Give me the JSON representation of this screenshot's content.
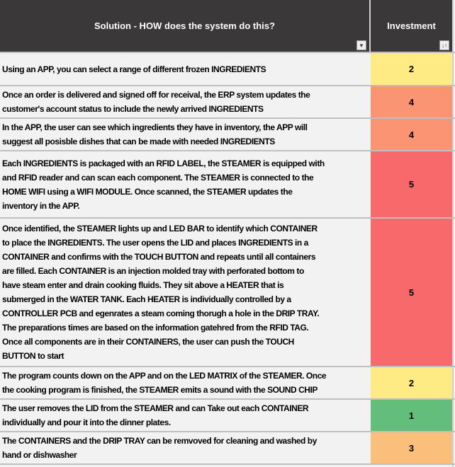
{
  "header": {
    "solution": "Solution - HOW does the system do this?",
    "investment": "Investment"
  },
  "colors": {
    "header_bg": "#3a3838",
    "1": "#63be7b",
    "2": "#ffeb84",
    "3": "#fbbf7c",
    "4": "#fa9473",
    "5": "#f8696b"
  },
  "rows": [
    {
      "lines": [
        "Using an APP, you can select a range of different frozen INGREDIENTS"
      ],
      "investment": "2"
    },
    {
      "lines": [
        "Once an order is delivered and signed off for receival, the ERP system updates the",
        "customer's account status to include the newly arrived INGREDIENTS"
      ],
      "investment": "4"
    },
    {
      "lines": [
        "In the APP, the user can see which ingredients they have in inventory, the APP will",
        "suggest all posisble dishes that can be made with needed INGREDIENTS"
      ],
      "investment": "4"
    },
    {
      "lines": [
        "Each INGREDIENTS is packaged with an RFID LABEL, the STEAMER is equipped with",
        "and RFID reader and can scan each component. The STEAMER is connected to the",
        "HOME WIFI using a WIFI MODULE. Once scanned, the STEAMER updates the",
        "inventory in the APP."
      ],
      "investment": "5"
    },
    {
      "lines": [
        "Once identified, the STEAMER lights up and LED BAR to identify which CONTAINER",
        "to place the INGREDIENTS. The user opens the LID and places INGREDIENTS in a",
        "CONTAINER and confirms with the TOUCH BUTTON and repeats until all containers",
        "are filled. Each CONTAINER is an injection molded tray with perforated bottom to",
        "have steam enter and drain cooking fluids. They sit above a HEATER that is",
        "submerged in the WATER TANK. Each HEATER is individually controlled by a",
        "CONTROLLER PCB and egenrates a steam coming thorugh a hole in the DRIP TRAY.",
        "The preparations times are based on the information gatehred from the RFID TAG.",
        "Once all components are in their CONTAINERS, the user can push the TOUCH",
        "BUTTON to start"
      ],
      "investment": "5"
    },
    {
      "lines": [
        "The program counts down on the APP and on the LED MATRIX of the STEAMER. Once",
        "the cooking program is finished, the STEAMER emits a sound with the SOUND CHIP"
      ],
      "investment": "2"
    },
    {
      "lines": [
        "The user removes the LID from the STEAMER and can Take out each CONTAINER",
        "individually and pour it into the dinner plates."
      ],
      "investment": "1"
    },
    {
      "lines": [
        "The CONTAINERS and the DRIP TRAY can be remvoved for cleaning and washed by",
        "hand or dishwasher"
      ],
      "investment": "3"
    }
  ]
}
